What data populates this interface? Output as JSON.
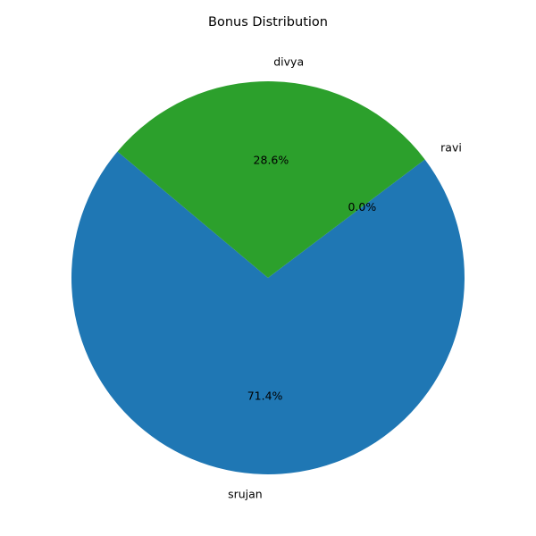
{
  "chart_data": {
    "type": "pie",
    "title": "Bonus Distribution",
    "start_angle_deg": 140,
    "direction": "counterclockwise",
    "slices": [
      {
        "label": "srujan",
        "value": 71.4,
        "percent_label": "71.4%",
        "color": "#1f77b4"
      },
      {
        "label": "ravi",
        "value": 0.0,
        "percent_label": "0.0%",
        "color": "#ff7f0e"
      },
      {
        "label": "divya",
        "value": 28.6,
        "percent_label": "28.6%",
        "color": "#2ca02c"
      }
    ]
  }
}
